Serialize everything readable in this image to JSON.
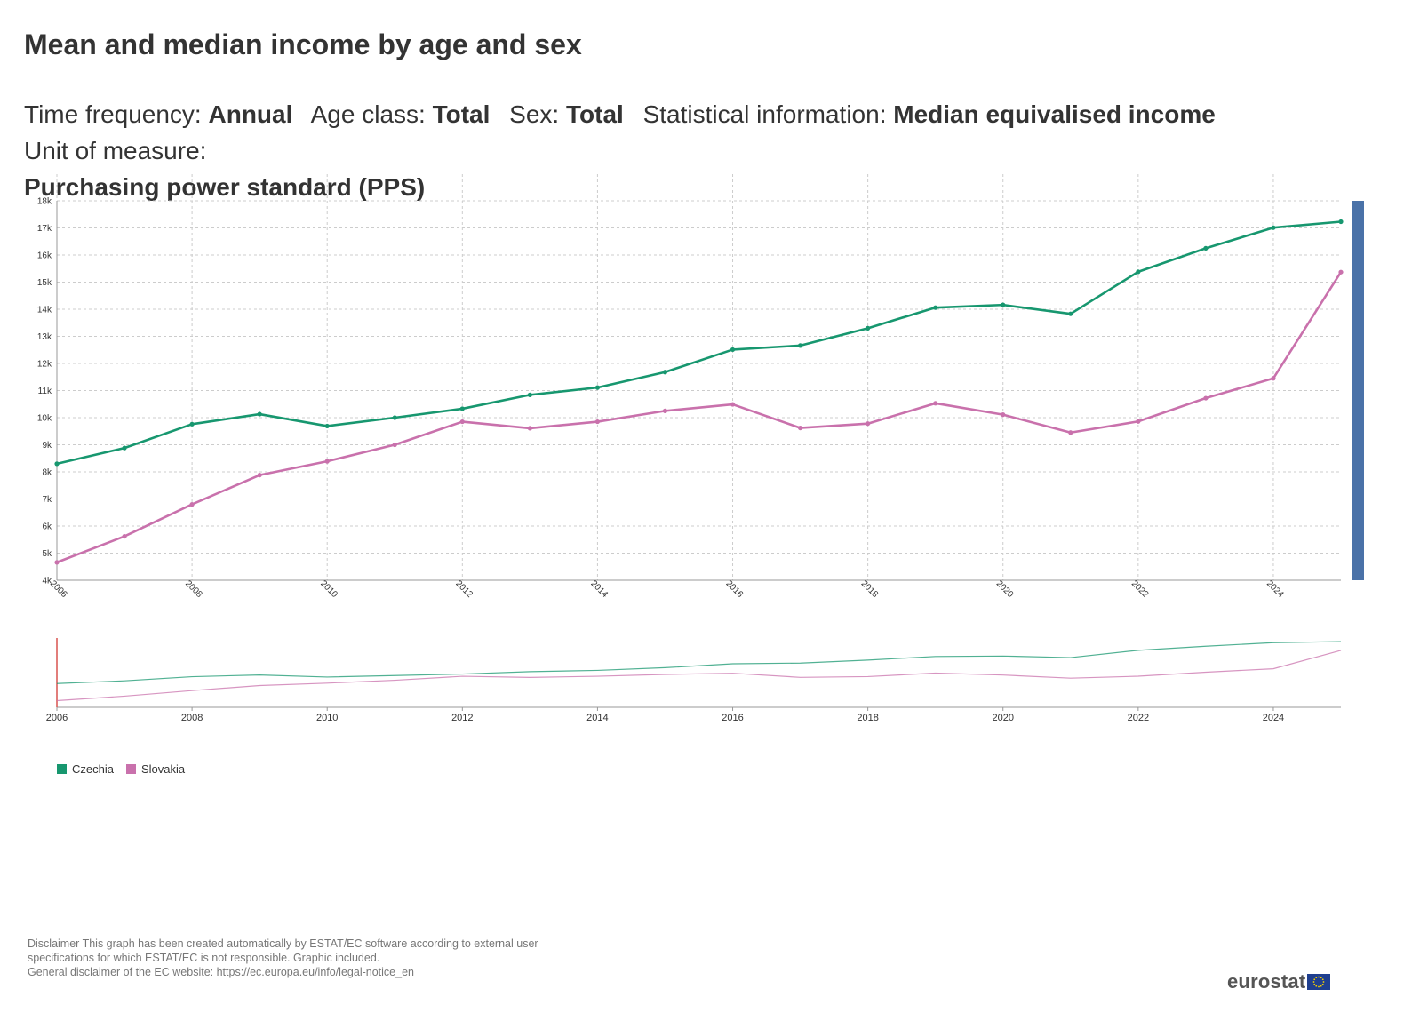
{
  "title": "Mean and median income by age and sex",
  "subtitle": [
    {
      "label": "Time frequency:",
      "value": "Annual"
    },
    {
      "label": "Age class:",
      "value": "Total"
    },
    {
      "label": "Sex:",
      "value": "Total"
    },
    {
      "label": "Statistical information:",
      "value": "Median equivalised income"
    },
    {
      "label": "Unit of measure:",
      "value": "Purchasing power standard (PPS)"
    }
  ],
  "chart_data": {
    "type": "line",
    "x": [
      2006,
      2007,
      2008,
      2009,
      2010,
      2011,
      2012,
      2013,
      2014,
      2015,
      2016,
      2017,
      2018,
      2019,
      2020,
      2021,
      2022,
      2023,
      2024,
      2025
    ],
    "x_tick_labels": [
      "2006",
      "2008",
      "2010",
      "2012",
      "2014",
      "2016",
      "2018",
      "2020",
      "2022",
      "2024"
    ],
    "y_tick_labels": [
      "4k",
      "5k",
      "6k",
      "7k",
      "8k",
      "9k",
      "10k",
      "11k",
      "12k",
      "13k",
      "14k",
      "15k",
      "16k",
      "17k",
      "18k"
    ],
    "ylim": [
      4000,
      18000
    ],
    "xlim": [
      2006,
      2025
    ],
    "grid": true,
    "legend_position": "bottom-left",
    "series": [
      {
        "name": "Czechia",
        "color": "#17976f",
        "values": [
          8300,
          8880,
          9760,
          10130,
          9690,
          10000,
          10330,
          10840,
          11110,
          11680,
          12510,
          12660,
          13300,
          14060,
          14160,
          13830,
          15380,
          16250,
          17010,
          17230
        ]
      },
      {
        "name": "Slovakia",
        "color": "#c971ac",
        "values": [
          4660,
          5620,
          6800,
          7880,
          8390,
          9000,
          9850,
          9610,
          9850,
          10250,
          10490,
          9620,
          9780,
          10530,
          10110,
          9450,
          9860,
          10720,
          11450,
          15370
        ]
      }
    ],
    "navigator_tick_labels": [
      "2006",
      "2008",
      "2010",
      "2012",
      "2014",
      "2016",
      "2018",
      "2020",
      "2022",
      "2024"
    ]
  },
  "disclaimer": [
    "Disclaimer This graph has been created automatically by ESTAT/EC software according to external user",
    "specifications for which ESTAT/EC is not responsible. Graphic included.",
    "General disclaimer of the EC website: https://ec.europa.eu/info/legal-notice_en"
  ],
  "brand": "eurostat",
  "colors": {
    "scrollbar": "#4a72a8",
    "grid": "#cccccc",
    "axis": "#333333",
    "navigator_cursor": "#d9534f"
  }
}
